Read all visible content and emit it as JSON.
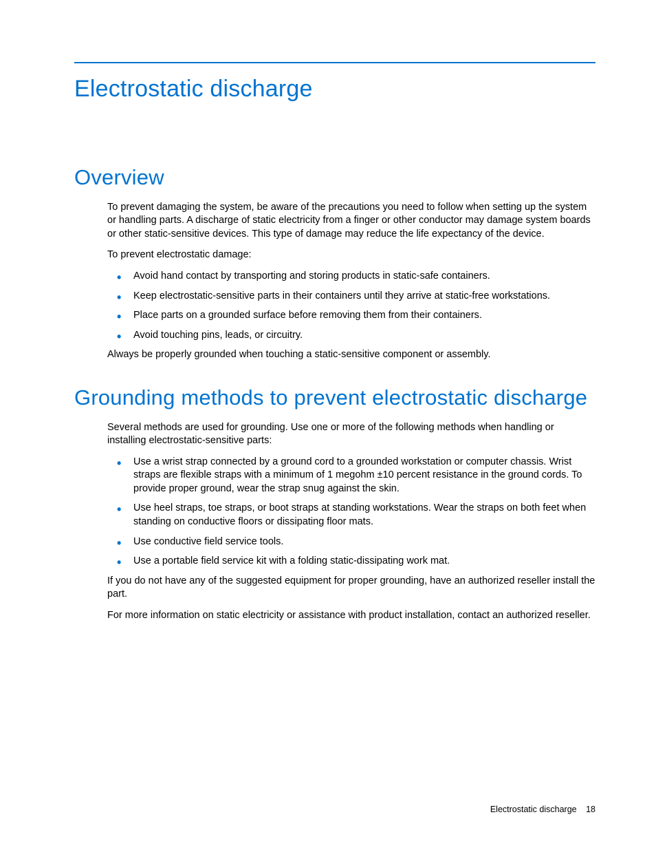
{
  "colors": {
    "accent": "#0073cf",
    "text": "#000000",
    "background": "#ffffff"
  },
  "typography": {
    "h1_size_pt": 26,
    "h2_size_pt": 23,
    "body_size_pt": 11,
    "footer_size_pt": 9,
    "heading_weight": 300
  },
  "chapter_title": "Electrostatic discharge",
  "section_overview": {
    "title": "Overview",
    "intro": "To prevent damaging the system, be aware of the precautions you need to follow when setting up the system or handling parts. A discharge of static electricity from a finger or other conductor may damage system boards or other static-sensitive devices. This type of damage may reduce the life expectancy of the device.",
    "lead_in": "To prevent electrostatic damage:",
    "bullets": [
      "Avoid hand contact by transporting and storing products in static-safe containers.",
      "Keep electrostatic-sensitive parts in their containers until they arrive at static-free workstations.",
      "Place parts on a grounded surface before removing them from their containers.",
      "Avoid touching pins, leads, or circuitry."
    ],
    "closing": "Always be properly grounded when touching a static-sensitive component or assembly."
  },
  "section_grounding": {
    "title": "Grounding methods to prevent electrostatic discharge",
    "intro": "Several methods are used for grounding. Use one or more of the following methods when handling or installing electrostatic-sensitive parts:",
    "bullets": [
      "Use a wrist strap connected by a ground cord to a grounded workstation or computer chassis. Wrist straps are flexible straps with a minimum of 1 megohm ±10 percent resistance in the ground cords. To provide proper ground, wear the strap snug against the skin.",
      "Use heel straps, toe straps, or boot straps at standing workstations. Wear the straps on both feet when standing on conductive floors or dissipating floor mats.",
      "Use conductive field service tools.",
      "Use a portable field service kit with a folding static-dissipating work mat."
    ],
    "para_after_1": "If you do not have any of the suggested equipment for proper grounding, have an authorized reseller install the part.",
    "para_after_2": "For more information on static electricity or assistance with product installation, contact an authorized reseller."
  },
  "footer": {
    "running_title": "Electrostatic discharge",
    "page_number": "18"
  }
}
